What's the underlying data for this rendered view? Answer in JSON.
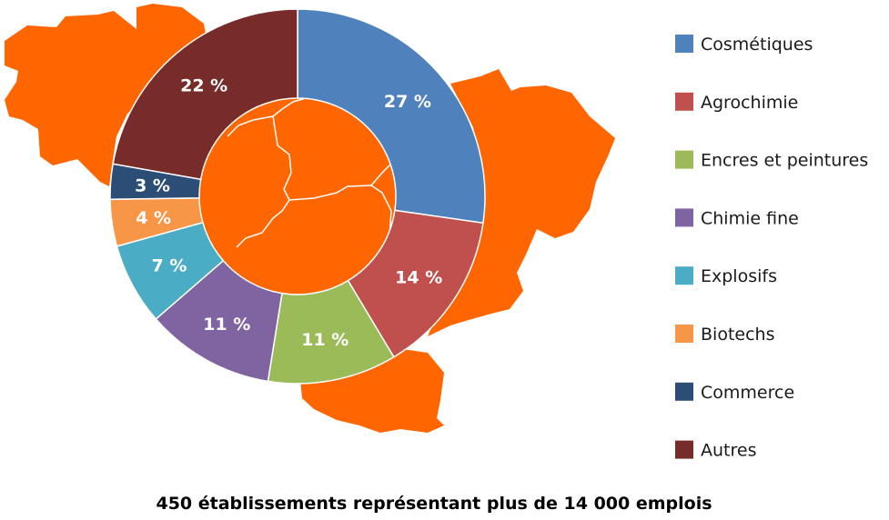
{
  "chart_data": {
    "type": "pie",
    "donut": true,
    "categories": [
      "Cosmétiques",
      "Agrochimie",
      "Encres et peintures",
      "Chimie fine",
      "Explosifs",
      "Biotechs",
      "Commerce",
      "Autres"
    ],
    "values": [
      27,
      14,
      11,
      11,
      7,
      4,
      3,
      22
    ],
    "labels": [
      "27 %",
      "14 %",
      "11 %",
      "11 %",
      "7 %",
      "4 %",
      "3 %",
      "22 %"
    ],
    "colors": [
      "#4f81bd",
      "#c0504d",
      "#9bbb59",
      "#8064a2",
      "#4bacc6",
      "#f79646",
      "#2c4d75",
      "#772c2a"
    ],
    "legend_position": "right",
    "start": "top",
    "direction": "clockwise"
  },
  "footer": "450 établissements représentant plus de 14 000 emplois",
  "map_color": "#ff6600"
}
